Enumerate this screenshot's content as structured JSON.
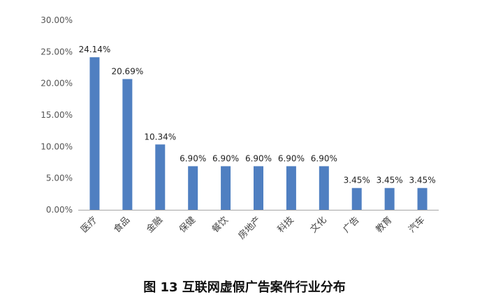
{
  "chart_data": {
    "type": "bar",
    "title": "",
    "xlabel": "",
    "ylabel": "",
    "categories": [
      "医疗",
      "食品",
      "金融",
      "保健",
      "餐饮",
      "房地产",
      "科技",
      "文化",
      "广告",
      "教育",
      "汽车"
    ],
    "values": [
      24.14,
      20.69,
      10.34,
      6.9,
      6.9,
      6.9,
      6.9,
      6.9,
      3.45,
      3.45,
      3.45
    ],
    "data_labels": [
      "24.14%",
      "20.69%",
      "10.34%",
      "6.90%",
      "6.90%",
      "6.90%",
      "6.90%",
      "6.90%",
      "3.45%",
      "3.45%",
      "3.45%"
    ],
    "ylim": [
      0,
      30
    ],
    "yticks": [
      0,
      5,
      10,
      15,
      20,
      25,
      30
    ],
    "ytick_labels": [
      "0.00%",
      "5.00%",
      "10.00%",
      "15.00%",
      "20.00%",
      "25.00%",
      "30.00%"
    ],
    "grid": false,
    "legend": "none",
    "bar_color": "#4F7FC1",
    "axis_color": "#A6A6A6"
  },
  "caption": "图 13  互联网虚假广告案件行业分布"
}
